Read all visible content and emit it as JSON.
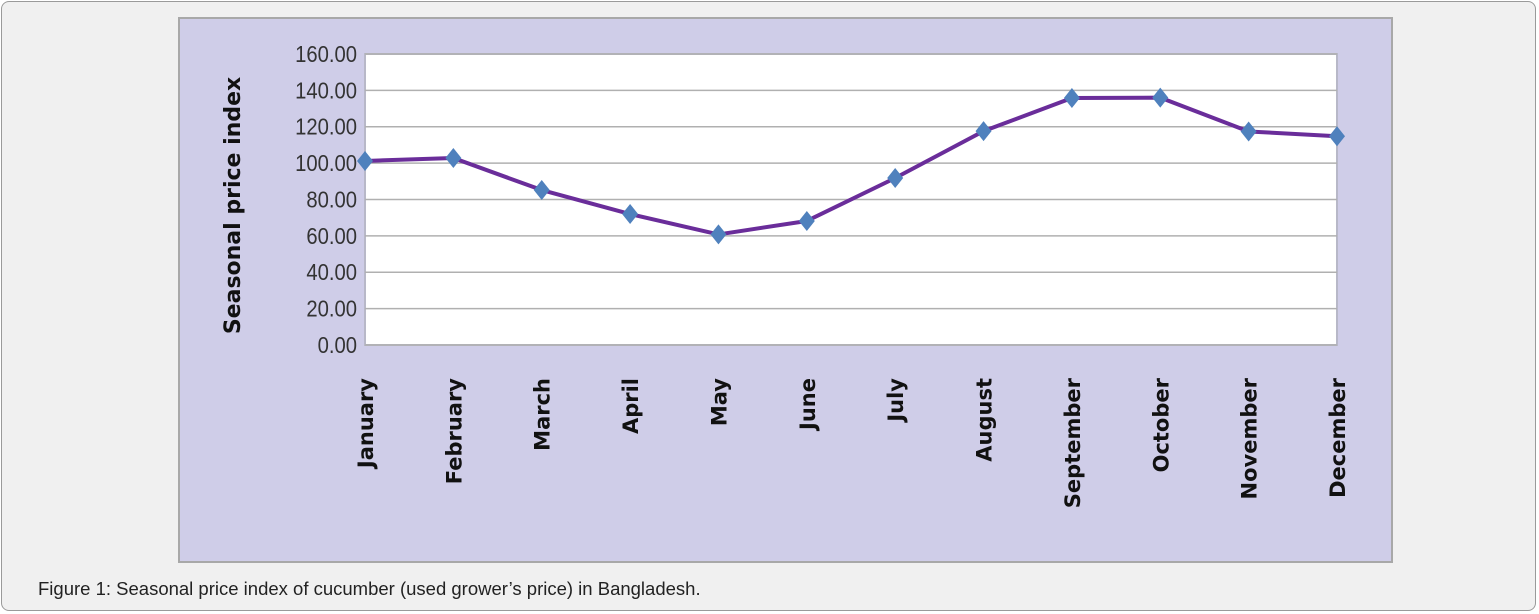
{
  "caption": "Figure 1: Seasonal price index of cucumber (used grower’s price) in Bangladesh.",
  "chart_data": {
    "type": "line",
    "title": "",
    "xlabel": "",
    "ylabel": "Seasonal price index",
    "ylim": [
      0,
      160
    ],
    "yticks": [
      "0.00",
      "20.00",
      "40.00",
      "60.00",
      "80.00",
      "100.00",
      "120.00",
      "140.00",
      "160.00"
    ],
    "grid": true,
    "categories": [
      "January",
      "February",
      "March",
      "April",
      "May",
      "June",
      "July",
      "August",
      "September",
      "October",
      "November",
      "December"
    ],
    "series": [
      {
        "values": [
          101.2,
          102.8,
          85.2,
          72.0,
          60.8,
          68.2,
          91.8,
          117.6,
          135.8,
          136.0,
          117.4,
          114.8
        ]
      }
    ],
    "colors": {
      "line": "#6a2d9a",
      "marker": "#4f81bd",
      "panel": "#cfcde8",
      "plot": "#ffffff",
      "grid": "#b0b0b0"
    }
  }
}
